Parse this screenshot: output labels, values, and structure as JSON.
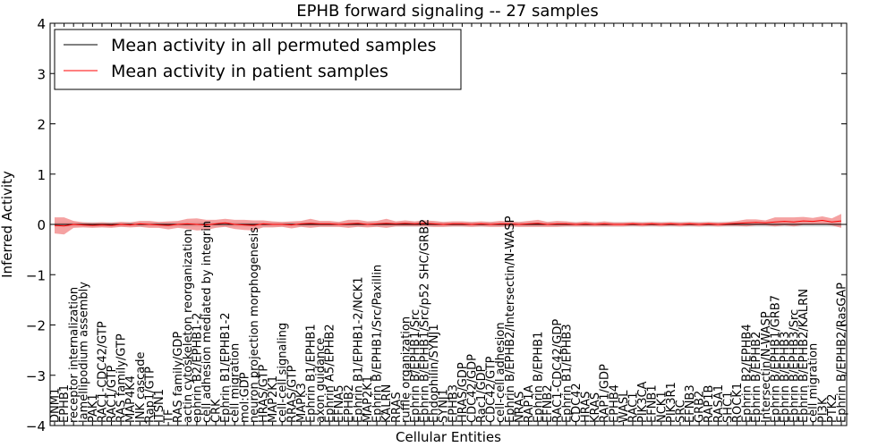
{
  "chart_data": {
    "type": "line",
    "title": "EPHB forward signaling -- 27 samples",
    "xlabel": "Cellular Entities",
    "ylabel": "Inferred Activity",
    "ylim": [
      -4,
      4
    ],
    "yticks": [
      "−4",
      "−3",
      "−2",
      "−1",
      "0",
      "1",
      "2",
      "3",
      "4"
    ],
    "ytick_values": [
      -4,
      -3,
      -2,
      -1,
      0,
      1,
      2,
      3,
      4
    ],
    "legend": {
      "placement": "top-left",
      "entries": [
        {
          "label": "Mean activity in all permuted samples",
          "color": "#000000"
        },
        {
          "label": "Mean activity in patient samples",
          "color": "#ff0000"
        }
      ]
    },
    "categories": [
      "DNM1",
      "EPHB1",
      "receptor internalization",
      "lamellipodium assembly",
      "PAK1",
      "RAC1-CDC42/GTP",
      "RAC1/GTP",
      "RAS family/GTP",
      "MAP4K4",
      "JNK cascade",
      "Rap1/GTP",
      "ITSN1",
      "TF",
      "RAS family/GDP",
      "actin cytoskeleton reorganization",
      "ephrin B2/EPHB1-2",
      "cell adhesion mediated by integrin",
      "CRK",
      "Ephrin B1/EPHB1-2",
      "cell migration",
      "mol:GDP",
      "neuron projection morphogenesis",
      "HRAS/GTP",
      "MAP2K1",
      "cell-cell signaling",
      "RRAS/GTP",
      "MAPK3",
      "Ephrin B1/EPHB1",
      "axon guidance",
      "Ephrin A5/EPHB2",
      "EFNA5",
      "EPHB2",
      "Ephrin B1/EPHB1-2/NCK1",
      "MAP2K1",
      "Ephrin B/EPHB1/Src/Paxillin",
      "KALRN",
      "RRAS",
      "ruffle organization",
      "Ephrin B/EPHB1/Src",
      "Ephrin B/EPHB1/Src/p52 SHC/GRB2",
      "Endophilin/SYNJ1",
      "SYNJ1",
      "EPHB3",
      "HRAS/GDP",
      "CDC42/GDP",
      "Rac1/GDP",
      "CDC42/GTP",
      "cell-cell adhesion",
      "Ephrin B/EPHB2/Intersectin/N-WASP",
      "NRAS",
      "RAP1A",
      "Ephrin B/EPHB1",
      "EFNB2",
      "RAC1-CDC42/GDP",
      "Ephrin B1/EPHB3",
      "CDC42",
      "HRAS",
      "KRAS",
      "RAP1/GDP",
      "EPHB4",
      "WASL",
      "RAC1",
      "PIK3CA",
      "EFNB1",
      "NCK1",
      "PIK3R1",
      "SRC",
      "EFNB3",
      "GRB2",
      "RAP1B",
      "RASA1",
      "SHC1",
      "ROCK1",
      "Ephrin B2/EPHB4",
      "Ephrin B/EPHB2",
      "Intersectin/N-WASP",
      "Ephrin B/EPHB1/GRB7",
      "Ephrin B/EPHB3",
      "Ephrin B/EPHB3/Src",
      "Ephrin B/EPHB2/KALRN",
      "cell migration",
      "PI3K",
      "PTK2",
      "Ephrin B/EPHB2/RasGAP"
    ],
    "series": [
      {
        "name": "Mean activity in all permuted samples",
        "values": [
          0.0,
          0.0,
          0.0,
          0.0,
          0.0,
          0.0,
          0.0,
          0.0,
          0.0,
          0.0,
          0.0,
          0.0,
          0.0,
          0.0,
          0.0,
          0.0,
          0.0,
          0.0,
          0.0,
          0.0,
          0.0,
          0.0,
          0.0,
          0.0,
          0.0,
          0.0,
          0.0,
          0.0,
          0.0,
          0.0,
          0.0,
          0.0,
          0.0,
          0.0,
          0.0,
          0.0,
          0.0,
          0.0,
          0.0,
          0.0,
          0.0,
          0.0,
          0.0,
          0.0,
          0.0,
          0.0,
          0.0,
          0.0,
          0.0,
          0.0,
          0.0,
          0.0,
          0.0,
          0.0,
          0.0,
          0.0,
          0.0,
          0.0,
          0.0,
          0.0,
          0.0,
          0.0,
          0.0,
          0.0,
          0.0,
          0.0,
          0.0,
          0.0,
          0.0,
          0.0,
          0.0,
          0.0,
          0.0,
          0.0,
          0.0,
          0.0,
          0.0,
          0.0,
          0.0,
          0.0,
          0.0,
          0.0,
          0.0,
          0.0
        ],
        "band": 0.05,
        "color": "#000000"
      },
      {
        "name": "Mean activity in patient samples",
        "values": [
          -0.02,
          -0.03,
          0.0,
          -0.01,
          -0.02,
          -0.01,
          -0.02,
          0.0,
          -0.01,
          0.01,
          0.0,
          -0.01,
          -0.02,
          0.0,
          0.01,
          0.0,
          -0.01,
          0.01,
          0.03,
          0.0,
          -0.01,
          -0.02,
          0.01,
          0.0,
          0.0,
          -0.01,
          0.01,
          0.02,
          0.01,
          0.01,
          0.0,
          0.01,
          0.02,
          0.0,
          0.01,
          0.02,
          0.01,
          0.02,
          0.01,
          0.02,
          0.01,
          0.0,
          0.01,
          0.01,
          0.0,
          0.01,
          0.0,
          0.01,
          0.01,
          0.0,
          0.01,
          0.02,
          0.0,
          0.01,
          0.01,
          0.0,
          0.01,
          0.0,
          0.01,
          0.0,
          0.0,
          0.01,
          0.0,
          0.01,
          0.0,
          0.01,
          0.0,
          0.01,
          0.0,
          0.01,
          0.0,
          0.01,
          0.02,
          0.03,
          0.04,
          0.03,
          0.05,
          0.06,
          0.05,
          0.07,
          0.06,
          0.08,
          0.05,
          0.07
        ],
        "band": [
          0.16,
          0.17,
          0.07,
          0.05,
          0.05,
          0.05,
          0.05,
          0.05,
          0.05,
          0.06,
          0.07,
          0.06,
          0.08,
          0.07,
          0.1,
          0.12,
          0.1,
          0.08,
          0.08,
          0.09,
          0.1,
          0.1,
          0.07,
          0.06,
          0.05,
          0.07,
          0.06,
          0.09,
          0.06,
          0.06,
          0.05,
          0.08,
          0.07,
          0.06,
          0.06,
          0.09,
          0.05,
          0.06,
          0.05,
          0.06,
          0.06,
          0.05,
          0.05,
          0.05,
          0.05,
          0.05,
          0.05,
          0.06,
          0.05,
          0.05,
          0.06,
          0.07,
          0.05,
          0.06,
          0.05,
          0.04,
          0.05,
          0.04,
          0.05,
          0.04,
          0.04,
          0.04,
          0.04,
          0.04,
          0.04,
          0.04,
          0.04,
          0.04,
          0.04,
          0.04,
          0.04,
          0.04,
          0.05,
          0.07,
          0.06,
          0.05,
          0.09,
          0.08,
          0.09,
          0.08,
          0.07,
          0.08,
          0.07,
          0.14
        ],
        "color": "#ff0000"
      }
    ]
  }
}
